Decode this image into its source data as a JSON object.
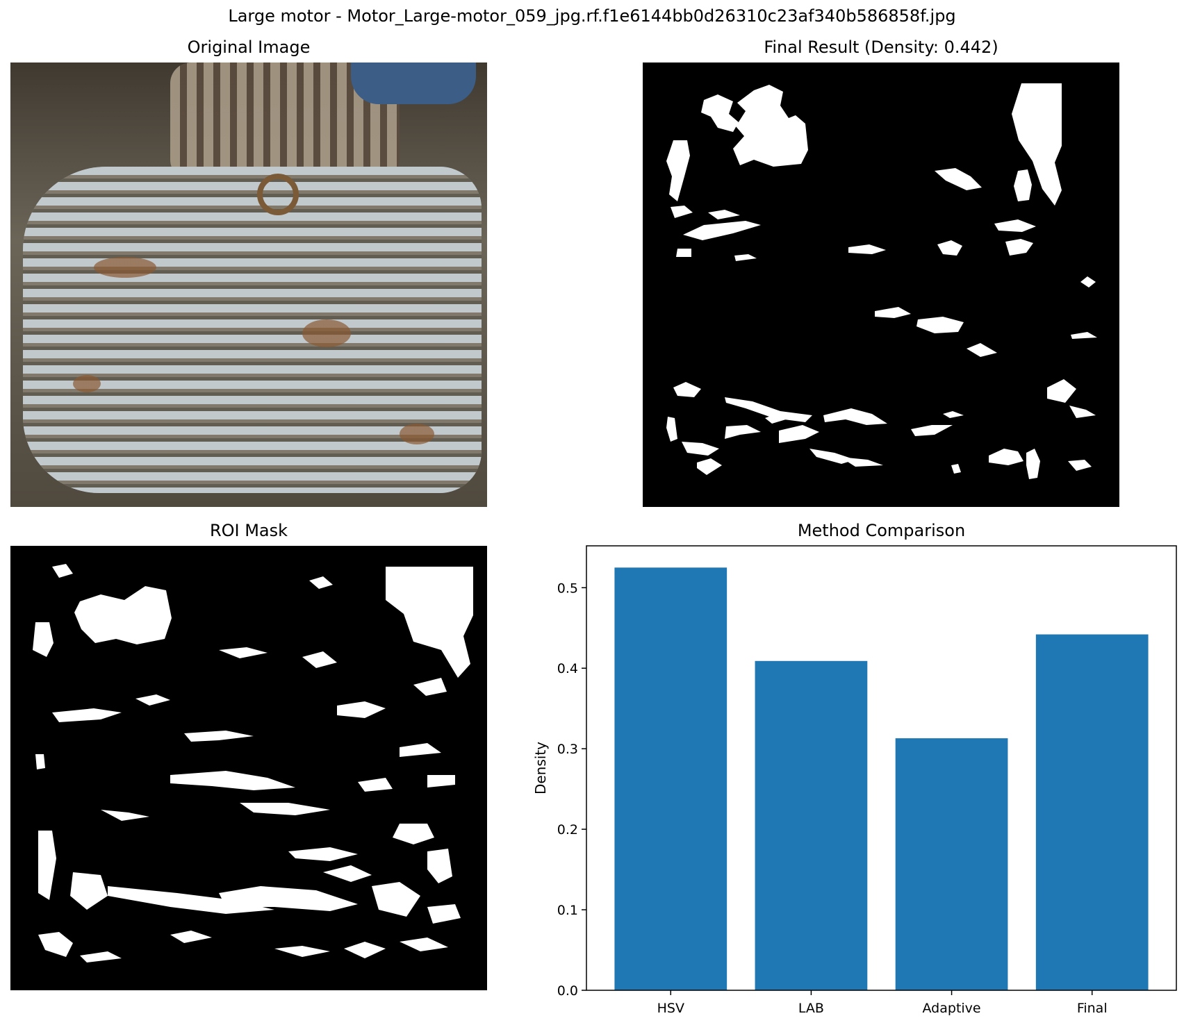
{
  "figure": {
    "suptitle": "Large motor - Motor_Large-motor_059_jpg.rf.f1e6144bb0d26310c23af340b586858f.jpg"
  },
  "panels": {
    "original": {
      "title": "Original Image"
    },
    "final": {
      "title": "Final Result (Density: 0.442)"
    },
    "roi": {
      "title": "ROI Mask"
    },
    "comparison": {
      "title": "Method Comparison"
    }
  },
  "colors": {
    "bar": "#1f77b4",
    "mask_bg": "#000000",
    "mask_fg": "#ffffff"
  },
  "chart_data": {
    "type": "bar",
    "title": "Method Comparison",
    "xlabel": "",
    "ylabel": "Density",
    "categories": [
      "HSV",
      "LAB",
      "Adaptive",
      "Final"
    ],
    "values": [
      0.525,
      0.409,
      0.313,
      0.442
    ],
    "ylim": [
      0,
      0.552
    ],
    "yticks": [
      0.0,
      0.1,
      0.2,
      0.3,
      0.4,
      0.5
    ],
    "ytick_labels": [
      "0.0",
      "0.1",
      "0.2",
      "0.3",
      "0.4",
      "0.5"
    ],
    "grid": false,
    "legend": "none"
  }
}
